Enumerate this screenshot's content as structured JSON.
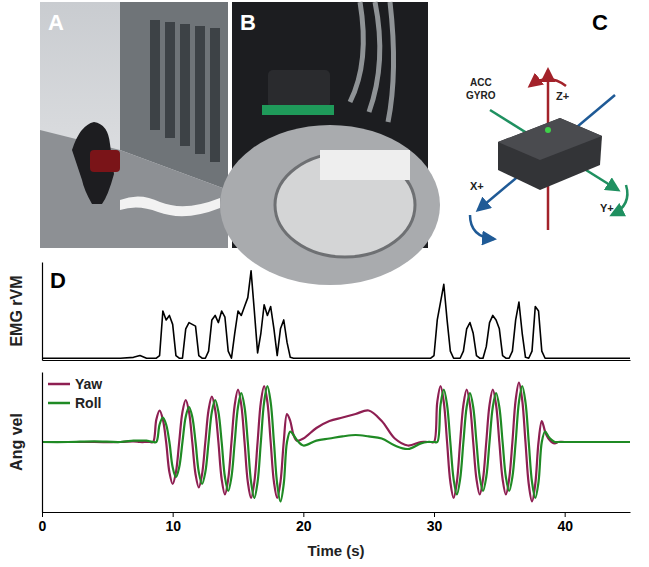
{
  "panel_labels": [
    "A",
    "B",
    "C",
    "D"
  ],
  "sensor_diagram": {
    "sensor_labels": [
      "ACC",
      "GYRO"
    ],
    "axis_labels": [
      "Z+",
      "X+",
      "Y+"
    ]
  },
  "chart_data": [
    {
      "type": "line",
      "ylabel": "EMG rVM",
      "color": "#000000",
      "xlim": [
        0,
        45
      ],
      "xticks": [],
      "ylim": [
        0,
        1.1
      ],
      "yticks": [],
      "tick_labels": false,
      "x": [
        0,
        2,
        4,
        6,
        7,
        7.5,
        8,
        8.25,
        8.5,
        8.75,
        9,
        9.25,
        9.5,
        9.75,
        10,
        10.25,
        10.5,
        10.75,
        11,
        11.25,
        11.5,
        11.75,
        12,
        12.25,
        12.5,
        12.75,
        13,
        13.25,
        13.5,
        13.75,
        14,
        14.25,
        14.5,
        14.75,
        15,
        15.25,
        15.5,
        15.75,
        16,
        16.25,
        16.5,
        16.75,
        17,
        17.25,
        17.5,
        17.75,
        18,
        18.25,
        18.5,
        18.75,
        19,
        19.25,
        19.5,
        20,
        21,
        22,
        23,
        24,
        25,
        26,
        27,
        28,
        29,
        29.5,
        29.75,
        30,
        30.25,
        30.5,
        30.75,
        31,
        31.25,
        31.5,
        31.75,
        32,
        32.25,
        32.5,
        32.75,
        33,
        33.25,
        33.5,
        33.75,
        34,
        34.25,
        34.5,
        34.75,
        35,
        35.25,
        35.5,
        35.75,
        36,
        36.25,
        36.5,
        36.75,
        37,
        37.25,
        37.5,
        37.75,
        38,
        38.25,
        38.5,
        38.75,
        39,
        39.25,
        39.5,
        40,
        42,
        45
      ],
      "values": [
        0.02,
        0.02,
        0.02,
        0.02,
        0.03,
        0.05,
        0.02,
        0.02,
        0.02,
        0.02,
        0.05,
        0.55,
        0.45,
        0.5,
        0.4,
        0.05,
        0.02,
        0.02,
        0.35,
        0.42,
        0.4,
        0.38,
        0.05,
        0.02,
        0.02,
        0.1,
        0.45,
        0.5,
        0.42,
        0.55,
        0.48,
        0.1,
        0.02,
        0.3,
        0.55,
        0.5,
        0.6,
        0.7,
        1.0,
        0.55,
        0.08,
        0.3,
        0.62,
        0.5,
        0.6,
        0.35,
        0.05,
        0.35,
        0.45,
        0.2,
        0.03,
        0.02,
        0.02,
        0.02,
        0.02,
        0.02,
        0.02,
        0.02,
        0.02,
        0.02,
        0.02,
        0.02,
        0.02,
        0.02,
        0.02,
        0.05,
        0.45,
        0.65,
        0.85,
        0.45,
        0.1,
        0.02,
        0.02,
        0.02,
        0.1,
        0.35,
        0.42,
        0.3,
        0.05,
        0.02,
        0.02,
        0.15,
        0.42,
        0.5,
        0.45,
        0.35,
        0.05,
        0.02,
        0.02,
        0.1,
        0.45,
        0.65,
        0.3,
        0.03,
        0.02,
        0.1,
        0.6,
        0.55,
        0.1,
        0.02,
        0.02,
        0.02,
        0.02,
        0.02,
        0.02,
        0.02,
        0.02
      ]
    },
    {
      "type": "line",
      "xlabel": "Time (s)",
      "ylabel": "Ang vel",
      "xlim": [
        0,
        45
      ],
      "xticks": [
        0,
        10,
        20,
        30,
        40
      ],
      "ylim": [
        -1,
        1
      ],
      "yticks": [],
      "tick_labels": "x",
      "legend": "upper left",
      "x": [
        0,
        2,
        4,
        6,
        7,
        7.5,
        8,
        8.25,
        8.5,
        8.75,
        9,
        9.25,
        9.5,
        9.75,
        10,
        10.25,
        10.5,
        10.75,
        11,
        11.25,
        11.5,
        11.75,
        12,
        12.25,
        12.5,
        12.75,
        13,
        13.25,
        13.5,
        13.75,
        14,
        14.25,
        14.5,
        14.75,
        15,
        15.25,
        15.5,
        15.75,
        16,
        16.25,
        16.5,
        16.75,
        17,
        17.25,
        17.5,
        17.75,
        18,
        18.25,
        18.5,
        18.75,
        19,
        19.25,
        19.5,
        20,
        21,
        22,
        23,
        24,
        25,
        26,
        27,
        28,
        29,
        29.5,
        29.75,
        30,
        30.25,
        30.5,
        30.75,
        31,
        31.25,
        31.5,
        31.75,
        32,
        32.25,
        32.5,
        32.75,
        33,
        33.25,
        33.5,
        33.75,
        34,
        34.25,
        34.5,
        34.75,
        35,
        35.25,
        35.5,
        35.75,
        36,
        36.25,
        36.5,
        36.75,
        37,
        37.25,
        37.5,
        37.75,
        38,
        38.25,
        38.5,
        38.75,
        39,
        39.25,
        39.5,
        40,
        42,
        45
      ],
      "series": [
        {
          "name": "Yaw",
          "color": "#8e1f52",
          "values": [
            0,
            0,
            0,
            0,
            0.01,
            0,
            0,
            0,
            0,
            0.32,
            0.45,
            0.32,
            0,
            -0.43,
            -0.6,
            -0.43,
            0,
            0.43,
            0.6,
            0.43,
            0,
            -0.46,
            -0.65,
            -0.46,
            0,
            0.46,
            0.65,
            0.46,
            0,
            -0.53,
            -0.75,
            -0.53,
            0,
            0.53,
            0.75,
            0.53,
            0,
            -0.57,
            -0.8,
            -0.57,
            0,
            0.57,
            0.8,
            0.57,
            0,
            -0.57,
            -0.8,
            -0.57,
            0,
            0.4,
            0.3,
            0.1,
            0.02,
            0.05,
            0.2,
            0.3,
            0.35,
            0.4,
            0.45,
            0.3,
            0.05,
            -0.05,
            0,
            0,
            0,
            0,
            0.57,
            0.8,
            0.57,
            0,
            -0.57,
            -0.8,
            -0.57,
            0,
            0.53,
            0.75,
            0.53,
            0,
            -0.53,
            -0.75,
            -0.53,
            0,
            0.53,
            0.75,
            0.53,
            0,
            -0.53,
            -0.75,
            -0.53,
            0,
            0.6,
            0.85,
            0.6,
            0,
            -0.6,
            -0.85,
            -0.6,
            0,
            0.3,
            0.15,
            0.05,
            0,
            -0.02,
            0,
            0,
            0,
            0
          ]
        },
        {
          "name": "Roll",
          "color": "#1f8a24",
          "values": [
            0,
            0,
            0.01,
            0,
            0.02,
            0.02,
            0.02,
            0.01,
            0,
            0,
            0.25,
            0.35,
            0.25,
            0,
            -0.36,
            -0.5,
            -0.36,
            0,
            0.36,
            0.5,
            0.36,
            0,
            -0.43,
            -0.6,
            -0.43,
            0,
            0.43,
            0.6,
            0.43,
            0,
            -0.5,
            -0.7,
            -0.5,
            0,
            0.5,
            0.7,
            0.5,
            0,
            -0.57,
            -0.8,
            -0.57,
            0,
            0.57,
            0.8,
            0.57,
            0,
            -0.6,
            -0.85,
            -0.6,
            0,
            0.15,
            0.1,
            0.03,
            -0.05,
            0.02,
            0.05,
            0.08,
            0.1,
            0.08,
            0.05,
            -0.05,
            -0.1,
            -0.02,
            0,
            0,
            0,
            0,
            0.53,
            0.75,
            0.53,
            0,
            -0.53,
            -0.75,
            -0.53,
            0,
            0.5,
            0.7,
            0.5,
            0,
            -0.5,
            -0.7,
            -0.5,
            0,
            0.5,
            0.7,
            0.5,
            0,
            -0.5,
            -0.7,
            -0.5,
            0,
            0.57,
            0.8,
            0.57,
            0,
            -0.57,
            -0.8,
            -0.57,
            0,
            0.15,
            0.08,
            0.03,
            0,
            0,
            0,
            0,
            0
          ]
        }
      ]
    }
  ]
}
